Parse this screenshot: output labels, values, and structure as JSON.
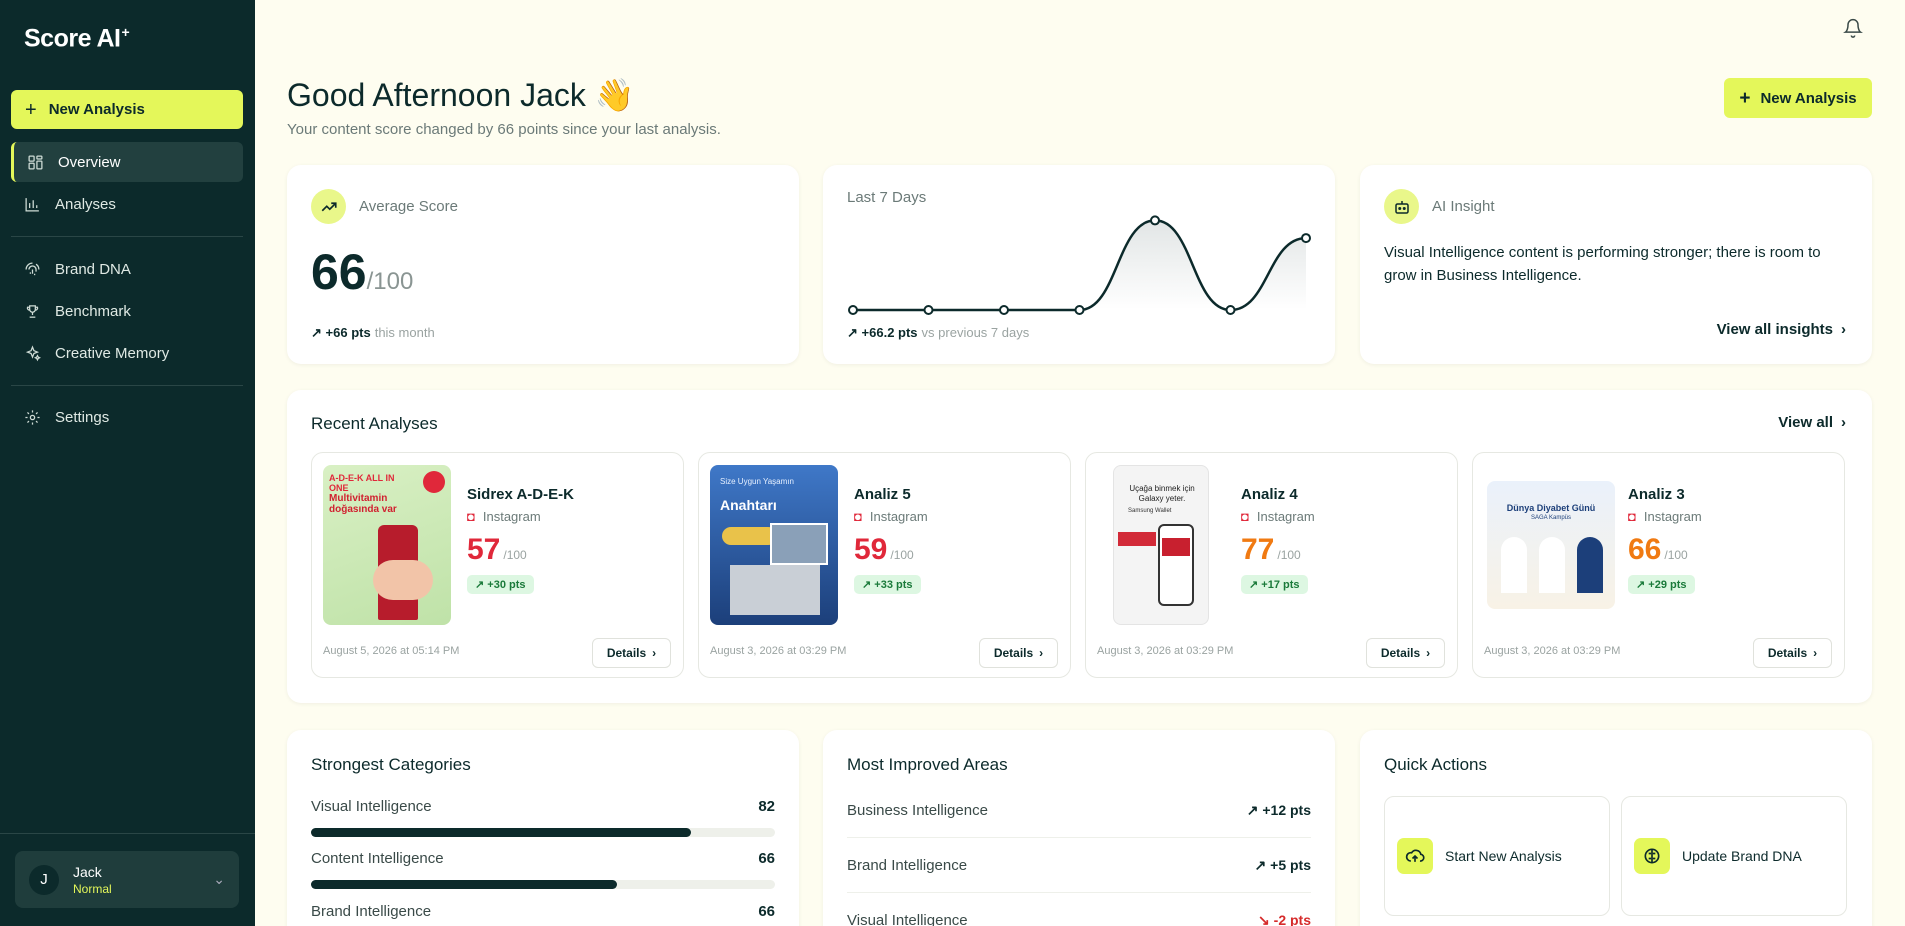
{
  "app": {
    "logo": "Score AI",
    "logo_mark": "+"
  },
  "sidebar": {
    "new_analysis": "New Analysis",
    "items": [
      {
        "label": "Overview",
        "icon": "grid-icon"
      },
      {
        "label": "Analyses",
        "icon": "bar-chart-icon"
      },
      {
        "label": "Brand DNA",
        "icon": "fingerprint-icon"
      },
      {
        "label": "Benchmark",
        "icon": "trophy-icon"
      },
      {
        "label": "Creative Memory",
        "icon": "sparkle-icon"
      },
      {
        "label": "Settings",
        "icon": "gear-icon"
      }
    ],
    "user": {
      "initial": "J",
      "name": "Jack",
      "role": "Normal"
    }
  },
  "header": {
    "greeting": "Good Afternoon Jack",
    "emoji": "👋",
    "subtitle": "Your content score changed by 66 points since your last analysis.",
    "new_analysis": "New Analysis"
  },
  "average": {
    "label": "Average Score",
    "score": "66",
    "denominator": "/100",
    "delta": "+66 pts",
    "delta_note": "this month"
  },
  "last7": {
    "label": "Last 7 Days",
    "delta": "+66.2 pts",
    "delta_note": "vs previous 7 days",
    "chart_data": {
      "type": "line",
      "values": [
        0,
        0,
        0,
        0,
        66,
        0,
        53
      ],
      "ylim": [
        0,
        70
      ],
      "grid": false
    }
  },
  "insight": {
    "label": "AI Insight",
    "text": "Visual Intelligence content is performing stronger; there is room to grow in Business Intelligence.",
    "link": "View all insights"
  },
  "recent": {
    "title": "Recent Analyses",
    "view_all": "View all",
    "items": [
      {
        "title": "Sidrex A-D-E-K",
        "platform": "Instagram",
        "score": "57",
        "den": "/100",
        "delta": "+30 pts",
        "date": "August 5, 2026 at 05:14 PM",
        "details": "Details",
        "color": "#e0283a",
        "img_text_1": "A-D-E-K ALL IN ONE",
        "img_text_2": "Multivitamin doğasında var"
      },
      {
        "title": "Analiz 5",
        "platform": "Instagram",
        "score": "59",
        "den": "/100",
        "delta": "+33 pts",
        "date": "August 3, 2026 at 03:29 PM",
        "details": "Details",
        "color": "#e0283a",
        "img_text_1": "Size Uygun Yaşamın",
        "img_text_2": "Anahtarı"
      },
      {
        "title": "Analiz 4",
        "platform": "Instagram",
        "score": "77",
        "den": "/100",
        "delta": "+17 pts",
        "date": "August 3, 2026 at 03:29 PM",
        "details": "Details",
        "color": "#f07a12",
        "img_text_1": "Uçağa binmek için Galaxy yeter.",
        "img_text_2": "Samsung Wallet"
      },
      {
        "title": "Analiz 3",
        "platform": "Instagram",
        "score": "66",
        "den": "/100",
        "delta": "+29 pts",
        "date": "August 3, 2026 at 03:29 PM",
        "details": "Details",
        "color": "#f07a12",
        "img_text_1": "Dünya Diyabet Günü",
        "img_text_2": "SAGA Kampüs"
      }
    ]
  },
  "strongest": {
    "title": "Strongest Categories",
    "items": [
      {
        "label": "Visual Intelligence",
        "value": 82
      },
      {
        "label": "Content Intelligence",
        "value": 66
      },
      {
        "label": "Brand Intelligence",
        "value": 66
      }
    ]
  },
  "improved": {
    "title": "Most Improved Areas",
    "items": [
      {
        "label": "Business Intelligence",
        "value": "+12 pts",
        "dir": "up"
      },
      {
        "label": "Brand Intelligence",
        "value": "+5 pts",
        "dir": "up"
      },
      {
        "label": "Visual Intelligence",
        "value": "-2 pts",
        "dir": "down"
      }
    ]
  },
  "quick": {
    "title": "Quick Actions",
    "items": [
      {
        "label": "Start New Analysis",
        "icon": "cloud-upload-icon"
      },
      {
        "label": "Update Brand DNA",
        "icon": "brain-icon"
      }
    ]
  }
}
